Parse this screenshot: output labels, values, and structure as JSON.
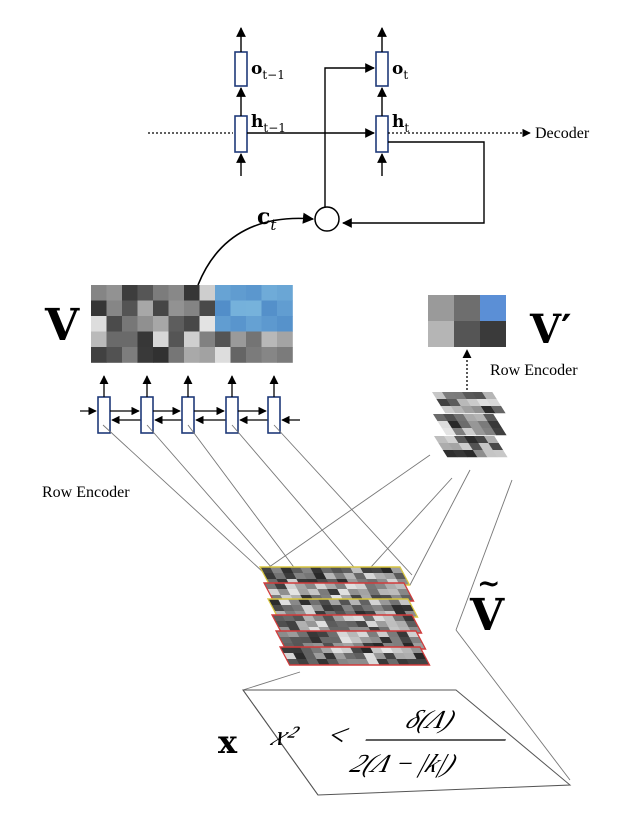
{
  "labels": {
    "decoder": "Decoder",
    "row_encoder_left": "Row Encoder",
    "row_encoder_right": "Row Encoder",
    "o_prev": "o",
    "o_prev_sub": "t−1",
    "o_cur": "o",
    "o_cur_sub": "t",
    "h_prev": "h",
    "h_prev_sub": "t−1",
    "h_cur": "h",
    "h_cur_sub": "t",
    "context": "c",
    "context_sub": "t",
    "V": "V",
    "V_prime": "V′",
    "V_tilde": "V",
    "V_tilde_accent": "~",
    "X": "x"
  },
  "formula": {
    "lhs": "x²",
    "relation": "<",
    "numerator": "δ(Λ)",
    "denominator": "2(Λ − |k|)"
  },
  "colors": {
    "cell_border": "#1f3a7a",
    "attention_blue": "#5b8fd6",
    "feature_red": "#d23b3b",
    "feature_yellow": "#d8c640"
  }
}
